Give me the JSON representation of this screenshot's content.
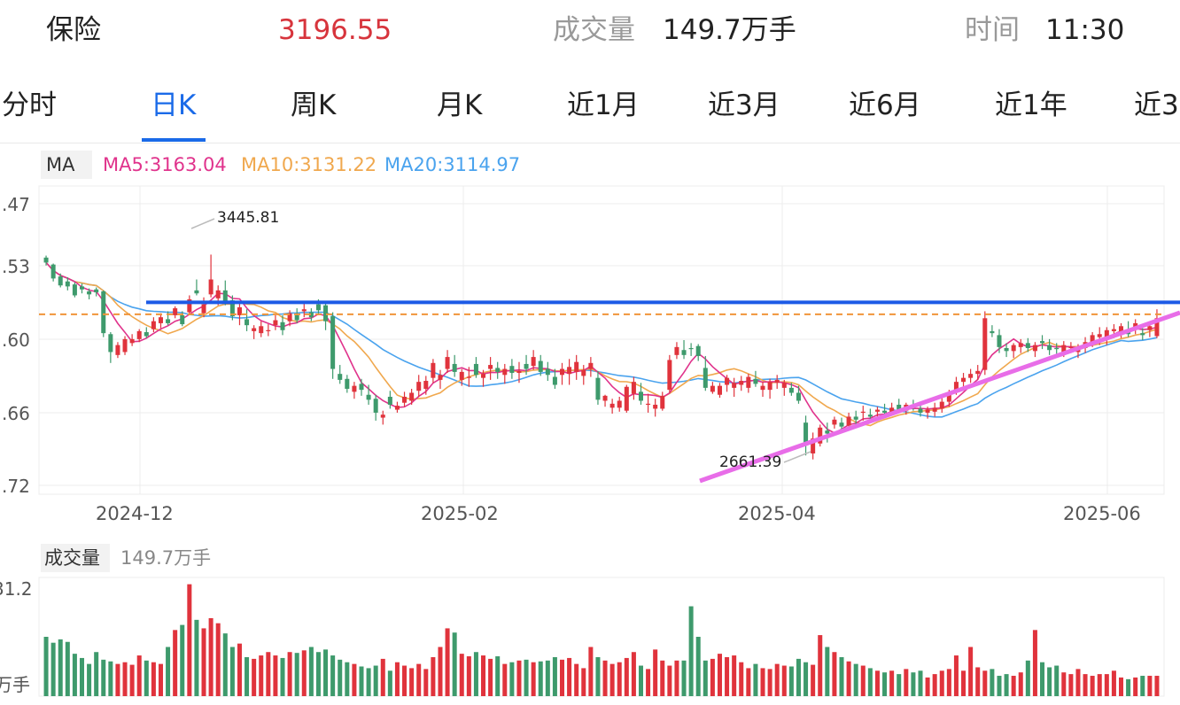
{
  "header": {
    "name": "保险",
    "price": "3196.55",
    "volume_label": "成交量",
    "volume_value": "149.7万手",
    "time_label": "时间",
    "time_value": "11:30"
  },
  "tabs": [
    {
      "label": "分时"
    },
    {
      "label": "日K"
    },
    {
      "label": "周K"
    },
    {
      "label": "月K"
    },
    {
      "label": "近1月"
    },
    {
      "label": "近3月"
    },
    {
      "label": "近6月"
    },
    {
      "label": "近1年"
    },
    {
      "label": "近3"
    }
  ],
  "active_tab": "日K",
  "colors": {
    "up": "#e0333c",
    "down": "#3e9a6c",
    "ma5": "#e0338c",
    "ma10": "#f0a84e",
    "ma20": "#4aa3ee",
    "accent": "#1a6ae8",
    "support": "#e86de8"
  },
  "chart_data": [
    {
      "type": "candlestick",
      "legend": {
        "ma_label": "MA",
        "ma5": "MA5:3163.04",
        "ma10": "MA10:3131.22",
        "ma20": "MA20:3114.97"
      },
      "y_tick_labels": [
        ".47",
        ".53",
        ".60",
        ".66",
        ".72"
      ],
      "y_tick_values": [
        3486,
        3412,
        3338,
        3264,
        3190
      ],
      "ylim": [
        3180,
        3490
      ],
      "x_tick_labels": [
        "2024-12",
        "2025-02",
        "2025-04",
        "2025-06"
      ],
      "annotations": {
        "high": "3445.81",
        "low": "2661.39"
      },
      "resistance_level": 3373,
      "dashed_level": 3361,
      "ohlc": [
        [
          3418,
          3420,
          3410,
          3413
        ],
        [
          3411,
          3412,
          3394,
          3397
        ],
        [
          3399,
          3402,
          3388,
          3390
        ],
        [
          3394,
          3398,
          3385,
          3389
        ],
        [
          3391,
          3393,
          3378,
          3380
        ],
        [
          3389,
          3392,
          3382,
          3386
        ],
        [
          3384,
          3387,
          3376,
          3381
        ],
        [
          3386,
          3388,
          3379,
          3383
        ],
        [
          3384,
          3385,
          3338,
          3342
        ],
        [
          3341,
          3343,
          3312,
          3323
        ],
        [
          3320,
          3333,
          3317,
          3330
        ],
        [
          3323,
          3339,
          3320,
          3336
        ],
        [
          3332,
          3341,
          3329,
          3336
        ],
        [
          3336,
          3346,
          3333,
          3344
        ],
        [
          3343,
          3348,
          3337,
          3339
        ],
        [
          3346,
          3358,
          3343,
          3354
        ],
        [
          3352,
          3362,
          3347,
          3358
        ],
        [
          3356,
          3364,
          3350,
          3352
        ],
        [
          3360,
          3369,
          3357,
          3367
        ],
        [
          3360,
          3364,
          3349,
          3351
        ],
        [
          3363,
          3380,
          3360,
          3376
        ],
        [
          3385,
          3396,
          3380,
          3382
        ],
        [
          3362,
          3378,
          3358,
          3371
        ],
        [
          3381,
          3421,
          3378,
          3396
        ],
        [
          3377,
          3390,
          3370,
          3385
        ],
        [
          3385,
          3395,
          3370,
          3374
        ],
        [
          3375,
          3380,
          3355,
          3359
        ],
        [
          3360,
          3372,
          3350,
          3368
        ],
        [
          3356,
          3366,
          3344,
          3350
        ],
        [
          3344,
          3350,
          3336,
          3347
        ],
        [
          3342,
          3354,
          3338,
          3349
        ],
        [
          3344,
          3351,
          3339,
          3345
        ],
        [
          3350,
          3360,
          3345,
          3355
        ],
        [
          3353,
          3360,
          3340,
          3345
        ],
        [
          3354,
          3365,
          3349,
          3362
        ],
        [
          3360,
          3367,
          3352,
          3355
        ],
        [
          3364,
          3372,
          3358,
          3366
        ],
        [
          3363,
          3367,
          3354,
          3358
        ],
        [
          3371,
          3376,
          3360,
          3365
        ],
        [
          3370,
          3373,
          3345,
          3354
        ],
        [
          3359,
          3363,
          3296,
          3306
        ],
        [
          3301,
          3310,
          3291,
          3295
        ],
        [
          3296,
          3300,
          3282,
          3286
        ],
        [
          3283,
          3293,
          3276,
          3289
        ],
        [
          3291,
          3296,
          3279,
          3285
        ],
        [
          3280,
          3290,
          3270,
          3275
        ],
        [
          3276,
          3280,
          3254,
          3262
        ],
        [
          3257,
          3264,
          3250,
          3260
        ],
        [
          3278,
          3284,
          3266,
          3270
        ],
        [
          3265,
          3273,
          3262,
          3269
        ],
        [
          3272,
          3283,
          3268,
          3278
        ],
        [
          3274,
          3286,
          3270,
          3282
        ],
        [
          3284,
          3300,
          3278,
          3293
        ],
        [
          3286,
          3299,
          3280,
          3294
        ],
        [
          3297,
          3316,
          3292,
          3312
        ],
        [
          3295,
          3305,
          3286,
          3300
        ],
        [
          3306,
          3325,
          3302,
          3318
        ],
        [
          3311,
          3320,
          3298,
          3303
        ],
        [
          3295,
          3306,
          3289,
          3303
        ],
        [
          3298,
          3308,
          3288,
          3298
        ],
        [
          3311,
          3318,
          3297,
          3300
        ],
        [
          3297,
          3305,
          3288,
          3301
        ],
        [
          3306,
          3318,
          3295,
          3310
        ],
        [
          3307,
          3313,
          3296,
          3303
        ],
        [
          3300,
          3311,
          3291,
          3306
        ],
        [
          3309,
          3316,
          3296,
          3302
        ],
        [
          3302,
          3313,
          3292,
          3304
        ],
        [
          3311,
          3320,
          3300,
          3306
        ],
        [
          3309,
          3325,
          3305,
          3318
        ],
        [
          3314,
          3320,
          3299,
          3303
        ],
        [
          3306,
          3313,
          3294,
          3300
        ],
        [
          3298,
          3306,
          3286,
          3290
        ],
        [
          3300,
          3312,
          3290,
          3306
        ],
        [
          3301,
          3316,
          3290,
          3308
        ],
        [
          3303,
          3320,
          3295,
          3313
        ],
        [
          3299,
          3310,
          3290,
          3305
        ],
        [
          3306,
          3318,
          3298,
          3312
        ],
        [
          3297,
          3304,
          3270,
          3275
        ],
        [
          3274,
          3280,
          3268,
          3279
        ],
        [
          3267,
          3276,
          3261,
          3271
        ],
        [
          3267,
          3278,
          3263,
          3274
        ],
        [
          3264,
          3290,
          3262,
          3288
        ],
        [
          3281,
          3298,
          3275,
          3293
        ],
        [
          3283,
          3292,
          3270,
          3274
        ],
        [
          3270,
          3281,
          3262,
          3271
        ],
        [
          3266,
          3276,
          3258,
          3270
        ],
        [
          3266,
          3283,
          3264,
          3279
        ],
        [
          3285,
          3320,
          3282,
          3315
        ],
        [
          3320,
          3333,
          3316,
          3328
        ],
        [
          3325,
          3335,
          3316,
          3320
        ],
        [
          3327,
          3332,
          3319,
          3326
        ],
        [
          3329,
          3331,
          3314,
          3319
        ],
        [
          3307,
          3319,
          3284,
          3287
        ],
        [
          3283,
          3293,
          3281,
          3289
        ],
        [
          3280,
          3292,
          3277,
          3289
        ],
        [
          3290,
          3300,
          3283,
          3297
        ],
        [
          3287,
          3297,
          3278,
          3292
        ],
        [
          3290,
          3299,
          3284,
          3294
        ],
        [
          3287,
          3301,
          3282,
          3298
        ],
        [
          3296,
          3304,
          3288,
          3291
        ],
        [
          3285,
          3293,
          3278,
          3289
        ],
        [
          3285,
          3296,
          3276,
          3293
        ],
        [
          3292,
          3300,
          3286,
          3295
        ],
        [
          3287,
          3295,
          3279,
          3292
        ],
        [
          3287,
          3292,
          3279,
          3282
        ],
        [
          3282,
          3289,
          3271,
          3274
        ],
        [
          3252,
          3259,
          3219,
          3229
        ],
        [
          3221,
          3242,
          3215,
          3236
        ],
        [
          3231,
          3250,
          3228,
          3247
        ],
        [
          3244,
          3252,
          3232,
          3241
        ],
        [
          3250,
          3258,
          3246,
          3255
        ],
        [
          3252,
          3257,
          3243,
          3248
        ],
        [
          3249,
          3262,
          3246,
          3258
        ],
        [
          3258,
          3264,
          3249,
          3255
        ],
        [
          3262,
          3269,
          3254,
          3263
        ],
        [
          3260,
          3266,
          3253,
          3258
        ],
        [
          3263,
          3268,
          3257,
          3265
        ],
        [
          3264,
          3271,
          3258,
          3262
        ],
        [
          3263,
          3272,
          3259,
          3267
        ],
        [
          3270,
          3276,
          3262,
          3265
        ],
        [
          3264,
          3272,
          3260,
          3270
        ],
        [
          3270,
          3275,
          3264,
          3267
        ],
        [
          3266,
          3271,
          3258,
          3262
        ],
        [
          3262,
          3268,
          3256,
          3265
        ],
        [
          3263,
          3272,
          3258,
          3267
        ],
        [
          3266,
          3278,
          3262,
          3273
        ],
        [
          3273,
          3285,
          3268,
          3282
        ],
        [
          3285,
          3298,
          3280,
          3293
        ],
        [
          3293,
          3302,
          3286,
          3297
        ],
        [
          3297,
          3306,
          3292,
          3301
        ],
        [
          3301,
          3310,
          3295,
          3304
        ],
        [
          3305,
          3364,
          3300,
          3357
        ],
        [
          3344,
          3350,
          3338,
          3342
        ],
        [
          3340,
          3346,
          3322,
          3328
        ],
        [
          3327,
          3332,
          3318,
          3324
        ],
        [
          3324,
          3332,
          3317,
          3330
        ],
        [
          3328,
          3336,
          3322,
          3332
        ],
        [
          3332,
          3337,
          3323,
          3327
        ],
        [
          3324,
          3333,
          3318,
          3330
        ],
        [
          3334,
          3340,
          3326,
          3332
        ],
        [
          3330,
          3336,
          3320,
          3325
        ],
        [
          3327,
          3332,
          3318,
          3326
        ],
        [
          3322,
          3334,
          3318,
          3330
        ],
        [
          3327,
          3333,
          3322,
          3328
        ],
        [
          3323,
          3331,
          3317,
          3326
        ],
        [
          3327,
          3338,
          3322,
          3333
        ],
        [
          3333,
          3343,
          3328,
          3340
        ],
        [
          3338,
          3348,
          3330,
          3341
        ],
        [
          3336,
          3348,
          3330,
          3345
        ],
        [
          3344,
          3351,
          3337,
          3346
        ],
        [
          3342,
          3352,
          3337,
          3349
        ],
        [
          3345,
          3354,
          3338,
          3341
        ],
        [
          3346,
          3356,
          3341,
          3352
        ],
        [
          3342,
          3347,
          3335,
          3340
        ],
        [
          3345,
          3352,
          3338,
          3349
        ],
        [
          3339,
          3366,
          3337,
          3357
        ]
      ]
    },
    {
      "type": "bar",
      "title": "成交量",
      "value_label": "149.7万手",
      "y_tick_labels": [
        "31.2",
        "万手"
      ],
      "ylim": [
        0,
        140
      ],
      "volume": [
        70,
        63,
        67,
        64,
        50,
        45,
        38,
        52,
        43,
        41,
        38,
        40,
        37,
        48,
        42,
        40,
        38,
        58,
        78,
        84,
        132,
        90,
        80,
        92,
        86,
        74,
        58,
        62,
        46,
        44,
        48,
        52,
        48,
        45,
        52,
        51,
        54,
        58,
        52,
        55,
        48,
        43,
        40,
        38,
        35,
        33,
        36,
        44,
        30,
        40,
        36,
        33,
        38,
        32,
        46,
        58,
        80,
        75,
        50,
        47,
        52,
        48,
        44,
        47,
        38,
        40,
        42,
        43,
        40,
        41,
        42,
        46,
        43,
        45,
        38,
        33,
        58,
        46,
        42,
        38,
        40,
        45,
        52,
        36,
        32,
        55,
        42,
        36,
        42,
        42,
        106,
        70,
        42,
        44,
        50,
        46,
        48,
        40,
        33,
        38,
        33,
        32,
        38,
        36,
        35,
        44,
        40,
        37,
        72,
        58,
        52,
        46,
        41,
        38,
        36,
        33,
        30,
        28,
        30,
        26,
        32,
        28,
        30,
        22,
        26,
        30,
        32,
        48,
        30,
        58,
        34,
        30,
        32,
        24,
        26,
        24,
        28,
        42,
        78,
        40,
        34,
        36,
        28,
        26,
        32,
        26,
        24,
        26,
        26,
        30,
        22,
        20,
        22,
        24,
        24,
        24,
        26,
        26,
        22,
        24,
        28,
        26,
        28,
        20
      ]
    }
  ]
}
